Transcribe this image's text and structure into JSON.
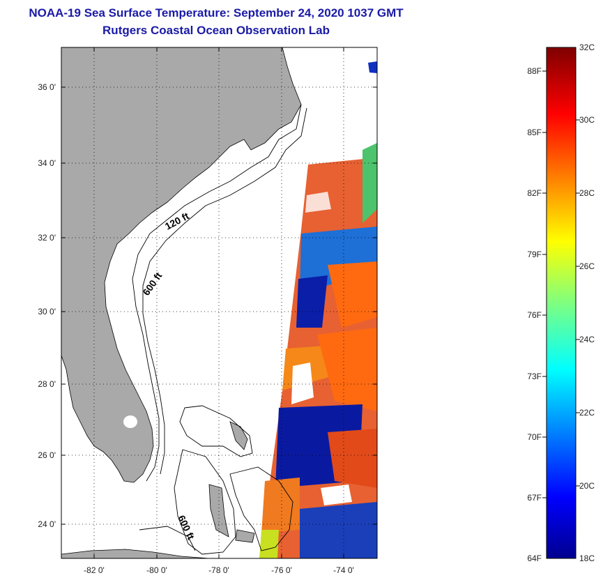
{
  "title": {
    "line1": "NOAA-19 Sea Surface Temperature:  September 24, 2020 1037 GMT",
    "line2": "Rutgers Coastal Ocean Observation Lab"
  },
  "map": {
    "lat_labels": [
      "36 0'",
      "34 0'",
      "32 0'",
      "30 0'",
      "28 0'",
      "26 0'",
      "24 0'"
    ],
    "lon_labels": [
      "-82 0'",
      "-80 0'",
      "-78 0'",
      "-76 0'",
      "-74 0'"
    ],
    "contour_labels": [
      "120 ft",
      "600 ft",
      "600 ft"
    ],
    "colors": {
      "land": "#a9a9a9",
      "ocean_nodata": "#ffffff"
    }
  },
  "colorbar": {
    "f_labels": [
      "88F",
      "85F",
      "82F",
      "79F",
      "76F",
      "73F",
      "70F",
      "67F",
      "64F"
    ],
    "c_labels": [
      "32C",
      "30C",
      "28C",
      "26C",
      "24C",
      "22C",
      "20C",
      "18C"
    ],
    "range_c": [
      18,
      32
    ]
  }
}
